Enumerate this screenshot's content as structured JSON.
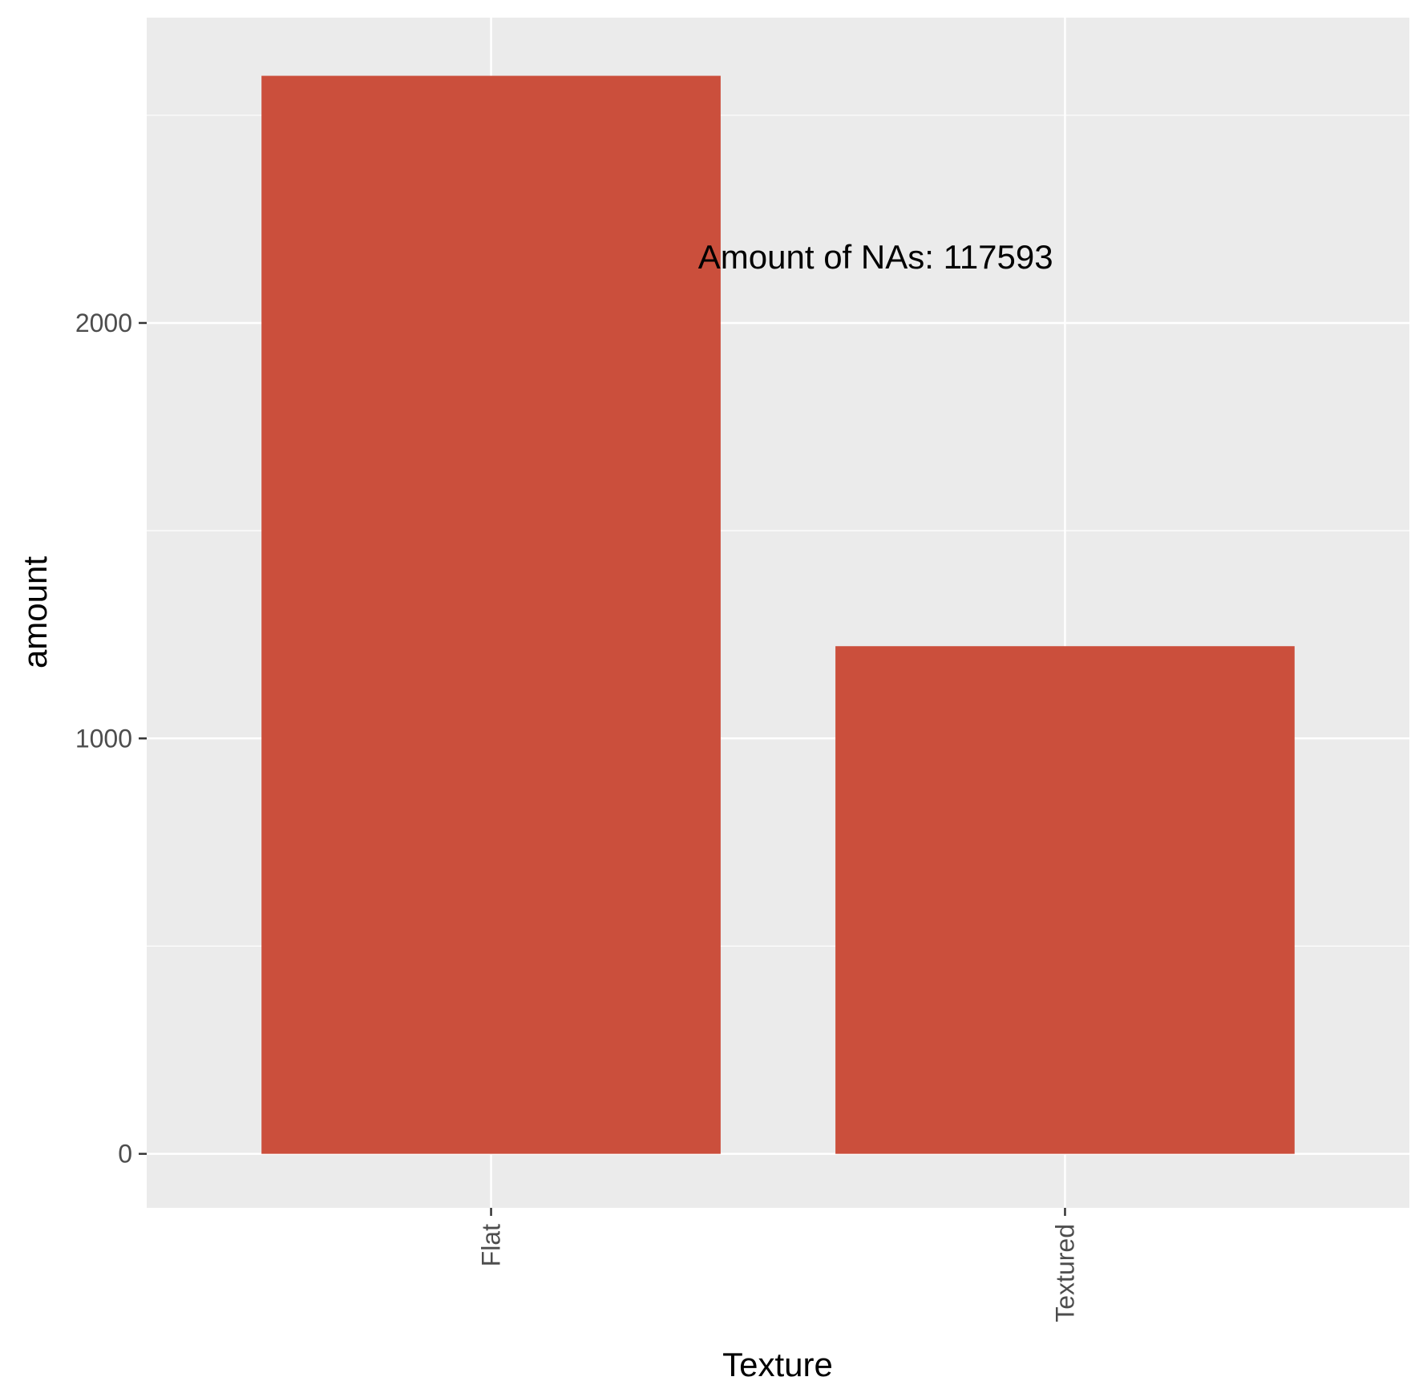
{
  "chart_data": {
    "type": "bar",
    "categories": [
      "Flat",
      "Textured"
    ],
    "values": [
      2595,
      1222
    ],
    "xlabel": "Texture",
    "ylabel": "amount",
    "ylim": [
      -130,
      2735
    ],
    "yticks": [
      0,
      1000,
      2000
    ],
    "ytick_labels": [
      "0",
      "1000",
      "2000"
    ],
    "grid": true,
    "annotation": {
      "text": "Amount of NAs: 117593",
      "x": 1.67,
      "y": 2160
    },
    "colors": {
      "bar": "#CB4F3C",
      "panel": "#EBEBEB",
      "gridline": "#FFFFFF"
    }
  }
}
